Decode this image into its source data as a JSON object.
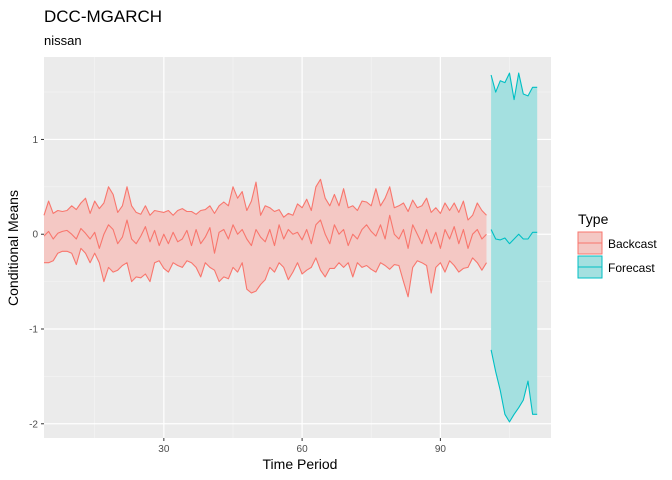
{
  "chart_data": {
    "type": "area",
    "title": "DCC-MGARCH",
    "subtitle": "nissan",
    "xlabel": "Time Period",
    "ylabel": "Conditional Means",
    "xlim": [
      4,
      114
    ],
    "ylim": [
      -2.15,
      1.87
    ],
    "x_ticks": [
      30,
      60,
      90
    ],
    "y_ticks": [
      -2,
      -1,
      0,
      1
    ],
    "x_tick_labels": [
      "30",
      "60",
      "90"
    ],
    "y_tick_labels": [
      "-2",
      "-1",
      "0",
      "1"
    ],
    "grid": true,
    "legend": {
      "title": "Type",
      "position": "right",
      "items": [
        {
          "label": "Backcast",
          "line": "#f8766d",
          "fill": "#f4c8c4"
        },
        {
          "label": "Forecast",
          "line": "#00bfc4",
          "fill": "#a4e0e0"
        }
      ]
    },
    "series": [
      {
        "name": "Backcast",
        "x": [
          4,
          5,
          6,
          7,
          8,
          9,
          10,
          11,
          12,
          13,
          14,
          15,
          16,
          17,
          18,
          19,
          20,
          21,
          22,
          23,
          24,
          25,
          26,
          27,
          28,
          29,
          30,
          31,
          32,
          33,
          34,
          35,
          36,
          37,
          38,
          39,
          40,
          41,
          42,
          43,
          44,
          45,
          46,
          47,
          48,
          49,
          50,
          51,
          52,
          53,
          54,
          55,
          56,
          57,
          58,
          59,
          60,
          61,
          62,
          63,
          64,
          65,
          66,
          67,
          68,
          69,
          70,
          71,
          72,
          73,
          74,
          75,
          76,
          77,
          78,
          79,
          80,
          81,
          82,
          83,
          84,
          85,
          86,
          87,
          88,
          89,
          90,
          91,
          92,
          93,
          94,
          95,
          96,
          97,
          98,
          99,
          100
        ],
        "upper": [
          0.2,
          0.35,
          0.22,
          0.25,
          0.24,
          0.25,
          0.3,
          0.26,
          0.33,
          0.38,
          0.22,
          0.35,
          0.27,
          0.33,
          0.5,
          0.42,
          0.23,
          0.3,
          0.5,
          0.3,
          0.23,
          0.21,
          0.3,
          0.2,
          0.25,
          0.24,
          0.23,
          0.25,
          0.2,
          0.25,
          0.27,
          0.24,
          0.24,
          0.21,
          0.25,
          0.26,
          0.3,
          0.22,
          0.3,
          0.34,
          0.3,
          0.5,
          0.38,
          0.45,
          0.25,
          0.35,
          0.55,
          0.2,
          0.3,
          0.28,
          0.24,
          0.26,
          0.18,
          0.22,
          0.2,
          0.32,
          0.28,
          0.37,
          0.25,
          0.5,
          0.58,
          0.38,
          0.3,
          0.42,
          0.3,
          0.48,
          0.28,
          0.3,
          0.25,
          0.35,
          0.34,
          0.3,
          0.48,
          0.3,
          0.38,
          0.5,
          0.28,
          0.3,
          0.33,
          0.24,
          0.36,
          0.28,
          0.3,
          0.38,
          0.23,
          0.28,
          0.22,
          0.33,
          0.25,
          0.33,
          0.23,
          0.35,
          0.15,
          0.2,
          0.33,
          0.25,
          0.2
        ],
        "mean": [
          -0.02,
          0.03,
          -0.05,
          0.01,
          0.03,
          0.04,
          0.0,
          -0.05,
          0.06,
          0.01,
          -0.05,
          0.02,
          -0.15,
          0.0,
          0.1,
          0.05,
          -0.1,
          -0.03,
          0.15,
          -0.05,
          -0.1,
          -0.02,
          0.08,
          -0.08,
          0.04,
          -0.12,
          0.0,
          -0.1,
          0.02,
          -0.08,
          -0.05,
          0.04,
          -0.12,
          0.05,
          -0.1,
          -0.03,
          0.07,
          -0.2,
          0.02,
          0.05,
          -0.05,
          0.1,
          0.0,
          0.05,
          -0.05,
          -0.12,
          0.05,
          -0.03,
          -0.08,
          0.05,
          -0.12,
          0.1,
          -0.05,
          0.05,
          0.0,
          0.02,
          -0.06,
          0.05,
          -0.1,
          0.1,
          0.15,
          0.0,
          -0.1,
          0.1,
          0.0,
          0.05,
          -0.12,
          0.0,
          -0.05,
          0.05,
          0.1,
          0.03,
          -0.02,
          0.1,
          -0.05,
          0.2,
          0.0,
          -0.05,
          0.05,
          -0.15,
          0.1,
          0.0,
          -0.1,
          0.05,
          -0.1,
          0.02,
          -0.15,
          0.05,
          -0.05,
          0.08,
          -0.1,
          0.05,
          -0.15,
          0.0,
          0.05,
          -0.05,
          0.0
        ],
        "lower": [
          -0.3,
          -0.3,
          -0.28,
          -0.2,
          -0.18,
          -0.18,
          -0.2,
          -0.32,
          -0.15,
          -0.2,
          -0.3,
          -0.2,
          -0.3,
          -0.5,
          -0.35,
          -0.4,
          -0.38,
          -0.33,
          -0.3,
          -0.5,
          -0.45,
          -0.46,
          -0.42,
          -0.5,
          -0.3,
          -0.28,
          -0.36,
          -0.4,
          -0.3,
          -0.33,
          -0.35,
          -0.28,
          -0.3,
          -0.35,
          -0.45,
          -0.3,
          -0.35,
          -0.38,
          -0.5,
          -0.45,
          -0.47,
          -0.35,
          -0.4,
          -0.3,
          -0.58,
          -0.62,
          -0.6,
          -0.53,
          -0.48,
          -0.35,
          -0.4,
          -0.3,
          -0.35,
          -0.48,
          -0.4,
          -0.3,
          -0.42,
          -0.38,
          -0.35,
          -0.25,
          -0.38,
          -0.45,
          -0.36,
          -0.36,
          -0.3,
          -0.35,
          -0.3,
          -0.45,
          -0.3,
          -0.35,
          -0.33,
          -0.37,
          -0.4,
          -0.3,
          -0.33,
          -0.37,
          -0.32,
          -0.33,
          -0.5,
          -0.66,
          -0.35,
          -0.28,
          -0.3,
          -0.33,
          -0.62,
          -0.35,
          -0.3,
          -0.4,
          -0.28,
          -0.33,
          -0.4,
          -0.36,
          -0.35,
          -0.25,
          -0.3,
          -0.38,
          -0.3
        ]
      },
      {
        "name": "Forecast",
        "x": [
          101,
          102,
          103,
          104,
          105,
          106,
          107,
          108,
          109,
          110,
          111
        ],
        "upper": [
          1.68,
          1.5,
          1.62,
          1.6,
          1.7,
          1.42,
          1.7,
          1.48,
          1.46,
          1.55,
          1.55
        ],
        "mean": [
          0.05,
          -0.05,
          -0.06,
          -0.04,
          -0.1,
          -0.05,
          0.0,
          -0.05,
          -0.05,
          0.02,
          0.02
        ],
        "lower": [
          -1.22,
          -1.45,
          -1.65,
          -1.9,
          -1.98,
          -1.9,
          -1.83,
          -1.75,
          -1.55,
          -1.9,
          -1.9
        ]
      }
    ]
  }
}
